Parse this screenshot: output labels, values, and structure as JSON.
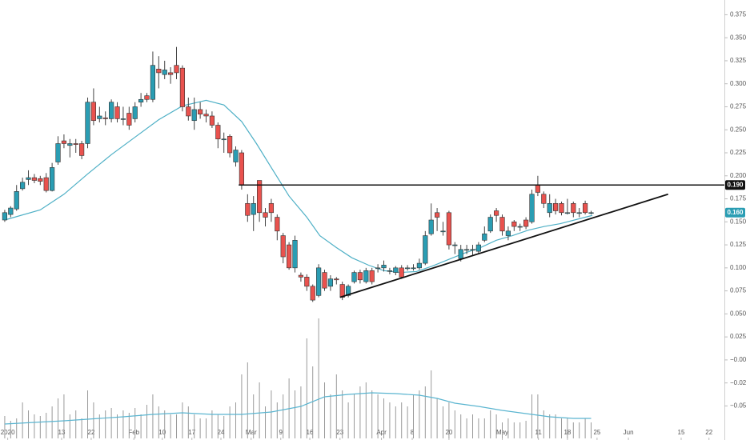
{
  "chart_data": {
    "type": "candlestick",
    "colors": {
      "up": "#2a9db3",
      "down": "#e9524e",
      "outline": "#333333",
      "wick": "#444444",
      "ma": "#4fb0c6",
      "volume": "#9a9a9a",
      "volume_ma": "#5bb5d0",
      "hline": "#111111",
      "trendline": "#111111",
      "last_price": "#2a9db3"
    },
    "xlim": [
      -0.8,
      121.5
    ],
    "ylim": [
      -0.087,
      0.391
    ],
    "xticks": [
      {
        "value": 0.5,
        "label": "2020"
      },
      {
        "value": 9.6,
        "label": "13"
      },
      {
        "value": 14.6,
        "label": "22"
      },
      {
        "value": 21.8,
        "label": "Feb"
      },
      {
        "value": 26.6,
        "label": "10"
      },
      {
        "value": 31.6,
        "label": "17"
      },
      {
        "value": 36.5,
        "label": "24"
      },
      {
        "value": 41.6,
        "label": "Mar"
      },
      {
        "value": 46.6,
        "label": "9"
      },
      {
        "value": 51.5,
        "label": "16"
      },
      {
        "value": 56.6,
        "label": "23"
      },
      {
        "value": 63.6,
        "label": "Apr"
      },
      {
        "value": 68.8,
        "label": "8"
      },
      {
        "value": 75,
        "label": "20"
      },
      {
        "value": 84,
        "label": "May"
      },
      {
        "value": 90.1,
        "label": "11"
      },
      {
        "value": 95,
        "label": "18"
      },
      {
        "value": 100,
        "label": "25"
      },
      {
        "value": 105.3,
        "label": "Jun"
      },
      {
        "value": 114.2,
        "label": "15"
      },
      {
        "value": 118.9,
        "label": "22"
      }
    ],
    "yticks": [
      0.375,
      {
        "value": 0.35,
        "label": "0.350"
      },
      0.325,
      {
        "value": 0.3,
        "label": "0.300"
      },
      0.275,
      {
        "value": 0.25,
        "label": "0.250"
      },
      0.225,
      {
        "value": 0.2,
        "label": "0.200"
      },
      0.175,
      {
        "value": 0.15,
        "label": "0.150"
      },
      0.125,
      {
        "value": 0.1,
        "label": "0.100"
      },
      0.075,
      {
        "value": 0.05,
        "label": "0.050"
      },
      0.025,
      {
        "value": 0,
        "label": "−0.000"
      },
      {
        "value": -0.025,
        "label": "−0.025"
      },
      {
        "value": -0.05,
        "label": "−0.050"
      }
    ],
    "open": [
      0.152,
      0.158,
      0.164,
      0.186,
      0.196,
      0.198,
      0.197,
      0.198,
      0.184,
      0.215,
      0.238,
      0.233,
      0.235,
      0.235,
      0.235,
      0.28,
      0.262,
      0.263,
      0.262,
      0.275,
      0.262,
      0.268,
      0.262,
      0.28,
      0.287,
      0.283,
      0.316,
      0.31,
      0.312,
      0.32,
      0.317,
      0.275,
      0.26,
      0.272,
      0.267,
      0.265,
      0.255,
      0.24,
      0.243,
      0.215,
      0.225,
      0.17,
      0.158,
      0.195,
      0.16,
      0.17,
      0.155,
      0.135,
      0.125,
      0.1,
      0.092,
      0.09,
      0.08,
      0.07,
      0.095,
      0.08,
      0.088,
      0.082,
      0.07,
      0.085,
      0.095,
      0.085,
      0.097,
      0.1,
      0.1,
      0.097,
      0.095,
      0.1,
      0.1,
      0.1,
      0.1,
      0.105,
      0.137,
      0.16,
      0.14,
      0.16,
      0.125,
      0.11,
      0.12,
      0.12,
      0.118,
      0.13,
      0.14,
      0.162,
      0.155,
      0.135,
      0.15,
      0.145,
      0.152,
      0.15,
      0.19,
      0.18,
      0.16,
      0.17,
      0.17,
      0.16,
      0.17,
      0.16,
      0.17,
      0.16
    ],
    "high": [
      0.163,
      0.167,
      0.19,
      0.198,
      0.206,
      0.202,
      0.2,
      0.203,
      0.214,
      0.243,
      0.245,
      0.24,
      0.24,
      0.238,
      0.285,
      0.295,
      0.275,
      0.27,
      0.283,
      0.28,
      0.275,
      0.275,
      0.28,
      0.29,
      0.29,
      0.335,
      0.33,
      0.325,
      0.318,
      0.34,
      0.32,
      0.285,
      0.285,
      0.28,
      0.272,
      0.27,
      0.258,
      0.247,
      0.245,
      0.232,
      0.228,
      0.18,
      0.178,
      0.195,
      0.165,
      0.175,
      0.158,
      0.138,
      0.128,
      0.135,
      0.095,
      0.093,
      0.082,
      0.104,
      0.098,
      0.092,
      0.09,
      0.085,
      0.082,
      0.097,
      0.098,
      0.1,
      0.1,
      0.104,
      0.108,
      0.1,
      0.102,
      0.103,
      0.103,
      0.104,
      0.11,
      0.14,
      0.17,
      0.165,
      0.15,
      0.162,
      0.128,
      0.125,
      0.125,
      0.125,
      0.128,
      0.145,
      0.158,
      0.165,
      0.158,
      0.145,
      0.152,
      0.148,
      0.155,
      0.185,
      0.2,
      0.183,
      0.18,
      0.175,
      0.172,
      0.175,
      0.172,
      0.165,
      0.173,
      0.162
    ],
    "low": [
      0.15,
      0.155,
      0.162,
      0.184,
      0.19,
      0.192,
      0.19,
      0.182,
      0.183,
      0.212,
      0.23,
      0.22,
      0.225,
      0.218,
      0.23,
      0.255,
      0.258,
      0.255,
      0.258,
      0.258,
      0.255,
      0.25,
      0.258,
      0.275,
      0.28,
      0.28,
      0.295,
      0.305,
      0.3,
      0.305,
      0.27,
      0.26,
      0.25,
      0.262,
      0.258,
      0.252,
      0.23,
      0.225,
      0.22,
      0.21,
      0.185,
      0.15,
      0.14,
      0.15,
      0.145,
      0.15,
      0.13,
      0.105,
      0.098,
      0.095,
      0.085,
      0.075,
      0.063,
      0.068,
      0.075,
      0.075,
      0.082,
      0.065,
      0.068,
      0.083,
      0.083,
      0.083,
      0.082,
      0.095,
      0.096,
      0.093,
      0.092,
      0.088,
      0.097,
      0.097,
      0.098,
      0.103,
      0.135,
      0.14,
      0.135,
      0.12,
      0.115,
      0.107,
      0.115,
      0.113,
      0.115,
      0.128,
      0.138,
      0.15,
      0.135,
      0.13,
      0.14,
      0.14,
      0.142,
      0.148,
      0.178,
      0.165,
      0.155,
      0.158,
      0.157,
      0.158,
      0.155,
      0.155,
      0.158,
      0.158
    ],
    "close": [
      0.16,
      0.165,
      0.183,
      0.193,
      0.198,
      0.195,
      0.194,
      0.184,
      0.209,
      0.235,
      0.235,
      0.235,
      0.234,
      0.222,
      0.28,
      0.26,
      0.265,
      0.262,
      0.28,
      0.262,
      0.262,
      0.255,
      0.275,
      0.283,
      0.283,
      0.32,
      0.312,
      0.315,
      0.31,
      0.312,
      0.275,
      0.265,
      0.272,
      0.267,
      0.265,
      0.255,
      0.24,
      0.24,
      0.225,
      0.228,
      0.19,
      0.157,
      0.17,
      0.16,
      0.155,
      0.16,
      0.14,
      0.112,
      0.1,
      0.13,
      0.09,
      0.08,
      0.065,
      0.1,
      0.078,
      0.088,
      0.087,
      0.068,
      0.08,
      0.095,
      0.087,
      0.097,
      0.085,
      0.1,
      0.103,
      0.097,
      0.1,
      0.09,
      0.1,
      0.1,
      0.105,
      0.135,
      0.152,
      0.155,
      0.14,
      0.125,
      0.125,
      0.12,
      0.12,
      0.12,
      0.125,
      0.137,
      0.155,
      0.157,
      0.14,
      0.14,
      0.145,
      0.145,
      0.145,
      0.18,
      0.182,
      0.17,
      0.17,
      0.162,
      0.16,
      0.16,
      0.16,
      0.16,
      0.16,
      0.16
    ],
    "volume": [
      28,
      22,
      25,
      45,
      35,
      30,
      28,
      32,
      40,
      50,
      55,
      30,
      35,
      25,
      60,
      45,
      30,
      35,
      38,
      30,
      35,
      32,
      38,
      30,
      42,
      55,
      40,
      35,
      30,
      30,
      45,
      40,
      30,
      25,
      25,
      35,
      30,
      28,
      40,
      45,
      80,
      95,
      55,
      70,
      40,
      60,
      45,
      55,
      75,
      60,
      65,
      125,
      90,
      150,
      70,
      55,
      80,
      60,
      45,
      55,
      65,
      70,
      60,
      55,
      50,
      45,
      40,
      45,
      40,
      55,
      60,
      65,
      85,
      50,
      40,
      45,
      35,
      30,
      25,
      30,
      25,
      25,
      35,
      30,
      20,
      25,
      20,
      20,
      22,
      55,
      55,
      35,
      30,
      30,
      25,
      25,
      20,
      20,
      25,
      20
    ],
    "ma": {
      "x": [
        0,
        6,
        10,
        14,
        18,
        22,
        26,
        30,
        34,
        37,
        40,
        42.5,
        45,
        48,
        51,
        53.2,
        56,
        58.6,
        61.4,
        64,
        66.8,
        69.5,
        72.2,
        74.9,
        77.6,
        80.3,
        83,
        85.7,
        88.4,
        91.1,
        93.8,
        99.2
      ],
      "values": [
        0.152,
        0.163,
        0.18,
        0.202,
        0.223,
        0.242,
        0.261,
        0.276,
        0.282,
        0.277,
        0.259,
        0.235,
        0.209,
        0.178,
        0.155,
        0.135,
        0.122,
        0.111,
        0.103,
        0.097,
        0.095,
        0.096,
        0.102,
        0.109,
        0.116,
        0.122,
        0.13,
        0.135,
        0.141,
        0.145,
        0.148,
        0.157
      ]
    },
    "volume_ma": {
      "x": [
        0,
        10,
        20,
        25,
        30,
        35,
        40,
        45,
        50,
        54,
        58,
        62,
        66,
        70,
        73,
        76,
        80,
        84,
        88,
        92,
        96,
        99
      ],
      "values": [
        18,
        22,
        27,
        30,
        32,
        30,
        30,
        33,
        40,
        52,
        55,
        57,
        56,
        54,
        50,
        44,
        40,
        35,
        31,
        27,
        25,
        25
      ]
    },
    "hline": {
      "x": 39.5,
      "value": 0.19,
      "label": "0.190"
    },
    "last_price": {
      "value": 0.16,
      "label": "0.160"
    },
    "trendline": {
      "x": [
        56.6,
        112
      ],
      "values": [
        0.068,
        0.18
      ]
    }
  }
}
